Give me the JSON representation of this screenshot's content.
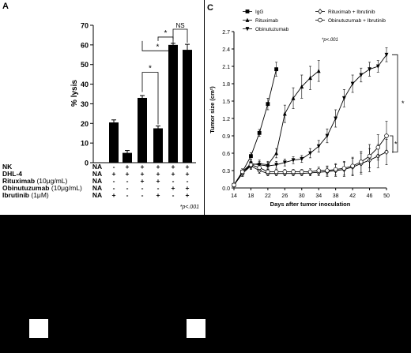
{
  "panelA": {
    "label": "A",
    "chart_data": {
      "type": "bar",
      "ylabel": "% lysis",
      "ylim": [
        0,
        70
      ],
      "yticks": [
        0,
        10,
        20,
        30,
        40,
        50,
        60,
        70
      ],
      "values": [
        0,
        20.5,
        5,
        33,
        17.5,
        60,
        57.5
      ],
      "errors": [
        0,
        1.3,
        1.2,
        1.2,
        1.2,
        0.8,
        2.8
      ],
      "table_rows": [
        {
          "label": "NK",
          "cells": [
            "NA",
            "-",
            "+",
            "+",
            "+",
            "+",
            "+"
          ]
        },
        {
          "label": "DHL-4",
          "cells": [
            "NA",
            "+",
            "+",
            "+",
            "+",
            "+",
            "+"
          ]
        },
        {
          "label": "Rituximab",
          "unit": "(10μg/mL)",
          "cells": [
            "NA",
            "-",
            "-",
            "+",
            "+",
            "-",
            "-"
          ]
        },
        {
          "label": "Obinutuzumab",
          "unit": "(10μg/mL)",
          "cells": [
            "NA",
            "-",
            "-",
            "-",
            "-",
            "+",
            "+"
          ]
        },
        {
          "label": "Ibrutinib",
          "unit": "(1μM)",
          "cells": [
            "NA",
            "+",
            "-",
            "-",
            "+",
            "-",
            "+"
          ]
        }
      ],
      "brackets": [
        {
          "from": 3,
          "to": 4,
          "label": "*"
        },
        {
          "from": 3,
          "to": 5,
          "label": "*"
        },
        {
          "from": 4,
          "to": 5,
          "label": "*"
        },
        {
          "from": 5,
          "to": 6,
          "label": "NS"
        }
      ],
      "footnote": "*p<.001"
    }
  },
  "panelC": {
    "label": "C",
    "chart_data": {
      "type": "line",
      "xlabel": "Days after tumor inoculation",
      "ylabel": "Tumor size (cm²)",
      "xlim": [
        14,
        50
      ],
      "ylim": [
        0,
        2.7
      ],
      "xticks": [
        14,
        18,
        22,
        26,
        30,
        34,
        38,
        42,
        46,
        50
      ],
      "yticks": [
        0,
        0.3,
        0.6,
        0.9,
        1.2,
        1.5,
        1.8,
        2.1,
        2.4,
        2.7
      ],
      "legend_position": "top",
      "series": [
        {
          "name": "IgG",
          "marker": "square",
          "x": [
            14,
            16,
            18,
            20,
            22,
            24
          ],
          "y": [
            0.05,
            0.28,
            0.55,
            0.95,
            1.45,
            2.05
          ],
          "err": [
            0.02,
            0.05,
            0.06,
            0.06,
            0.1,
            0.12
          ]
        },
        {
          "name": "Rituximab",
          "marker": "triangle",
          "x": [
            14,
            16,
            18,
            20,
            22,
            24,
            26,
            28,
            30,
            32,
            34
          ],
          "y": [
            0.05,
            0.25,
            0.4,
            0.42,
            0.4,
            0.6,
            1.28,
            1.55,
            1.75,
            1.9,
            2.02
          ],
          "err": [
            0.02,
            0.05,
            0.06,
            0.06,
            0.06,
            0.08,
            0.15,
            0.18,
            0.2,
            0.2,
            0.18
          ]
        },
        {
          "name": "Obinutuzumab",
          "marker": "triangle-down",
          "x": [
            14,
            16,
            18,
            20,
            22,
            24,
            26,
            28,
            30,
            32,
            34,
            36,
            38,
            40,
            42,
            44,
            46,
            48,
            50
          ],
          "y": [
            0.05,
            0.28,
            0.42,
            0.4,
            0.38,
            0.4,
            0.44,
            0.48,
            0.5,
            0.6,
            0.72,
            0.9,
            1.2,
            1.55,
            1.8,
            1.95,
            2.05,
            2.1,
            2.3
          ],
          "err": [
            0.02,
            0.05,
            0.06,
            0.06,
            0.06,
            0.06,
            0.06,
            0.06,
            0.06,
            0.08,
            0.1,
            0.12,
            0.15,
            0.15,
            0.15,
            0.12,
            0.12,
            0.1,
            0.12
          ]
        },
        {
          "name": "Rituximab + Ibrutinib",
          "marker": "diamond",
          "x": [
            14,
            16,
            18,
            20,
            22,
            24,
            26,
            28,
            30,
            32,
            34,
            36,
            38,
            40,
            42,
            44,
            46,
            48,
            50
          ],
          "y": [
            0.05,
            0.25,
            0.38,
            0.3,
            0.25,
            0.25,
            0.25,
            0.25,
            0.25,
            0.26,
            0.27,
            0.28,
            0.3,
            0.32,
            0.36,
            0.42,
            0.48,
            0.55,
            0.62
          ],
          "err": [
            0.02,
            0.05,
            0.06,
            0.05,
            0.04,
            0.04,
            0.04,
            0.04,
            0.04,
            0.05,
            0.06,
            0.08,
            0.1,
            0.12,
            0.15,
            0.18,
            0.2,
            0.2,
            0.22
          ]
        },
        {
          "name": "Obinutuzumab + Ibrutinib",
          "marker": "circle",
          "x": [
            14,
            16,
            18,
            20,
            22,
            24,
            26,
            28,
            30,
            32,
            34,
            36,
            38,
            40,
            42,
            44,
            46,
            48,
            50
          ],
          "y": [
            0.05,
            0.28,
            0.4,
            0.35,
            0.28,
            0.28,
            0.28,
            0.28,
            0.28,
            0.28,
            0.3,
            0.3,
            0.32,
            0.34,
            0.38,
            0.45,
            0.55,
            0.7,
            0.9
          ],
          "err": [
            0.02,
            0.05,
            0.06,
            0.05,
            0.04,
            0.04,
            0.04,
            0.04,
            0.04,
            0.05,
            0.06,
            0.08,
            0.1,
            0.12,
            0.15,
            0.18,
            0.2,
            0.22,
            0.25
          ]
        }
      ],
      "brackets": [
        {
          "label": "*"
        },
        {
          "label": "*"
        }
      ],
      "footnote": "*p<.001"
    }
  }
}
